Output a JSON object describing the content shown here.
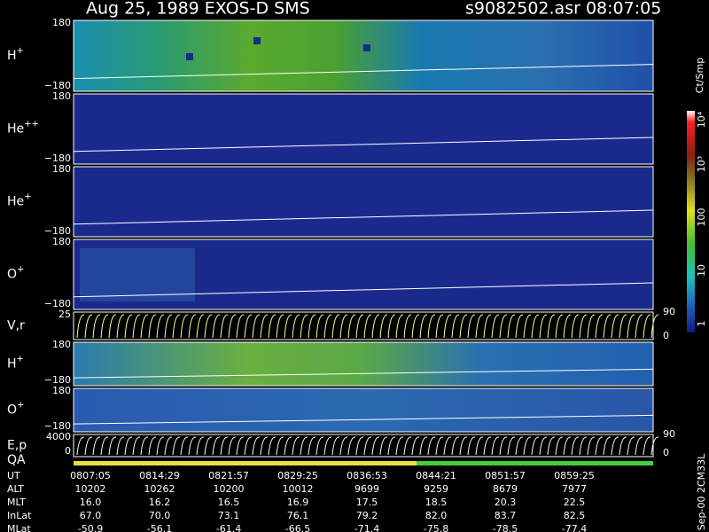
{
  "header": {
    "title": "Aug 25, 1989   EXOS-D SMS",
    "file": "s9082502.asr  08:07:05"
  },
  "panels": [
    {
      "label": "H",
      "sup": "+",
      "top": "180",
      "bottom": "−180"
    },
    {
      "label": "He",
      "sup": "++",
      "top": "180",
      "bottom": "−180"
    },
    {
      "label": "He",
      "sup": "+",
      "top": "180",
      "bottom": "−180"
    },
    {
      "label": "O",
      "sup": "+",
      "top": "180",
      "bottom": "−180"
    },
    {
      "label": "V,r",
      "top": "25",
      "right_top": "90",
      "right_bottom": "0"
    },
    {
      "label": "H",
      "sup": "+",
      "top": "180",
      "bottom": "−180"
    },
    {
      "label": "O",
      "sup": "+",
      "top": "180",
      "bottom": "−180"
    },
    {
      "label": "E,p",
      "top": "4000",
      "bottom": "0",
      "right_top": "90",
      "right_bottom": "0"
    }
  ],
  "qa_label": "QA",
  "colorbar": {
    "unit": "Ct/Smp",
    "ticks": [
      "10⁴",
      "10³",
      "100",
      "10",
      "1"
    ]
  },
  "footer_note": "Sep-00 2CM33L",
  "table": {
    "row_labels": [
      "UT",
      "ALT",
      "MLT",
      "InLat",
      "MLat"
    ],
    "rows": [
      [
        "0807:05",
        "0814:29",
        "0821:57",
        "0829:25",
        "0836:53",
        "0844:21",
        "0851:57",
        "0859:25"
      ],
      [
        "10202",
        "10262",
        "10200",
        "10012",
        "9699",
        "9259",
        "8679",
        "7977"
      ],
      [
        "16.0",
        "16.2",
        "16.5",
        "16.9",
        "17.5",
        "18.5",
        "20.3",
        "22.5"
      ],
      [
        "67.0",
        "70.0",
        "73.1",
        "76.1",
        "79.2",
        "82.0",
        "83.7",
        "82.5"
      ],
      [
        "-50.9",
        "-56.1",
        "-61.4",
        "-66.5",
        "-71.4",
        "-75.8",
        "-78.5",
        "-77.4"
      ]
    ]
  }
}
